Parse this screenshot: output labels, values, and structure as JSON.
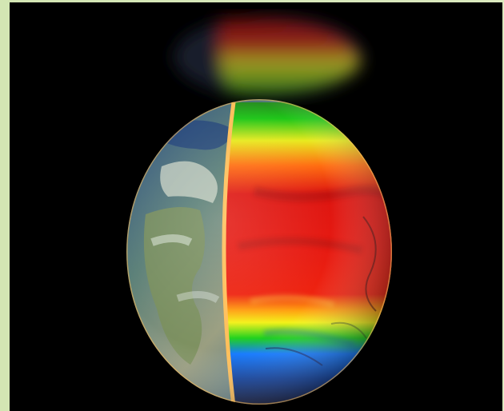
{
  "image": {
    "subject": "half-earth-half-temperature-map-globe",
    "colors": {
      "frame": "#d7e8b8",
      "background": "#000000",
      "ocean": "#1f4f93",
      "land": "#7f8e61",
      "red": "#e3170f",
      "orange": "#ff6a00",
      "yellow": "#f6ef15",
      "green": "#24d11a",
      "blue": "#1778ff",
      "rim": "#ffb34a"
    }
  }
}
